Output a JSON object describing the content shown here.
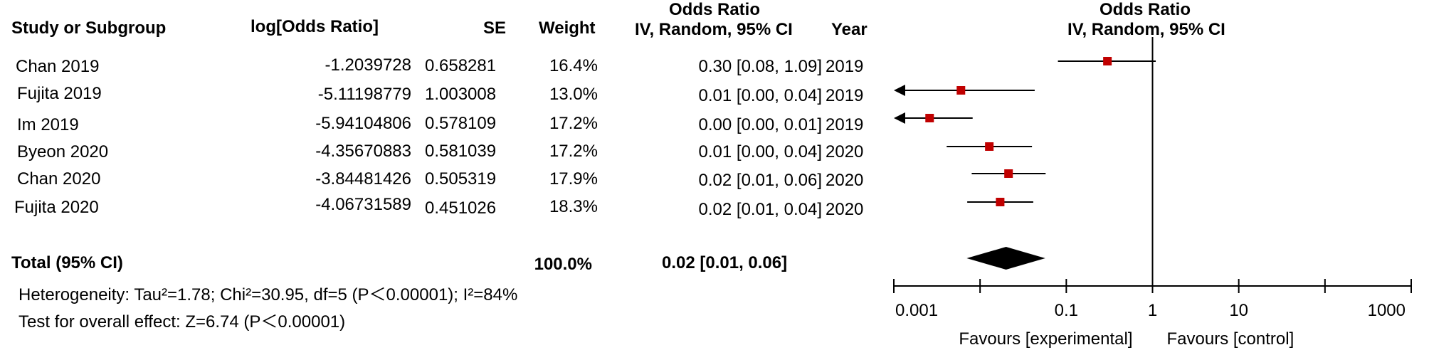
{
  "table": {
    "headers": {
      "study": "Study or Subgroup",
      "log_or": "log[Odds Ratio]",
      "se": "SE",
      "weight": "Weight",
      "or_top": "Odds Ratio",
      "or_bottom": "IV, Random, 95% CI",
      "year": "Year"
    },
    "rows": [
      {
        "study": "Chan 2019",
        "log_or": "-1.2039728",
        "se": "0.658281",
        "weight": "16.4%",
        "ci": "0.30 [0.08, 1.09]",
        "year": "2019"
      },
      {
        "study": "Fujita 2019",
        "log_or": "-5.11198779",
        "se": "1.003008",
        "weight": "13.0%",
        "ci": "0.01 [0.00, 0.04]",
        "year": "2019"
      },
      {
        "study": "Im 2019",
        "log_or": "-5.94104806",
        "se": "0.578109",
        "weight": "17.2%",
        "ci": "0.00 [0.00, 0.01]",
        "year": "2019"
      },
      {
        "study": "Byeon 2020",
        "log_or": "-4.35670883",
        "se": "0.581039",
        "weight": "17.2%",
        "ci": "0.01 [0.00, 0.04]",
        "year": "2020"
      },
      {
        "study": "Chan 2020",
        "log_or": "-3.84481426",
        "se": "0.505319",
        "weight": "17.9%",
        "ci": "0.02 [0.01, 0.06]",
        "year": "2020"
      },
      {
        "study": "Fujita 2020",
        "log_or": "-4.06731589",
        "se": "0.451026",
        "weight": "18.3%",
        "ci": "0.02 [0.01, 0.04]",
        "year": "2020"
      }
    ],
    "total": {
      "label": "Total (95% CI)",
      "weight": "100.0%",
      "ci": "0.02 [0.01, 0.06]"
    },
    "heterogeneity": "Heterogeneity: Tau²=1.78; Chi²=30.95, df=5 (P＜0.00001); I²=84%",
    "overall_effect": "Test for overall effect: Z=6.74 (P＜0.00001)"
  },
  "chart_data": {
    "type": "forest",
    "title": "Odds Ratio",
    "subtitle": "IV, Random, 95% CI",
    "x_scale": "log",
    "xlim": [
      0.001,
      1000
    ],
    "reference_line": 1,
    "ticks": [
      {
        "value": 0.001,
        "label": "0.001"
      },
      {
        "value": 0.1,
        "label": "0.1"
      },
      {
        "value": 1,
        "label": "1"
      },
      {
        "value": 10,
        "label": "10"
      },
      {
        "value": 1000,
        "label": "1000"
      }
    ],
    "xlabel_left": "Favours [experimental]",
    "xlabel_right": "Favours [control]",
    "marker_color": "#c00000",
    "studies": [
      {
        "name": "Chan 2019",
        "or": 0.3,
        "lower": 0.08,
        "upper": 1.09,
        "arrow_left": false
      },
      {
        "name": "Fujita 2019",
        "or": 0.006,
        "lower": 0.0008,
        "upper": 0.043,
        "arrow_left": true
      },
      {
        "name": "Im 2019",
        "or": 0.0026,
        "lower": 0.0008,
        "upper": 0.0082,
        "arrow_left": true
      },
      {
        "name": "Byeon 2020",
        "or": 0.0128,
        "lower": 0.0041,
        "upper": 0.04,
        "arrow_left": false
      },
      {
        "name": "Chan 2020",
        "or": 0.0214,
        "lower": 0.008,
        "upper": 0.0576,
        "arrow_left": false
      },
      {
        "name": "Fujita 2020",
        "or": 0.0171,
        "lower": 0.0071,
        "upper": 0.0414,
        "arrow_left": false
      }
    ],
    "pooled": {
      "or": 0.02,
      "lower": 0.007,
      "upper": 0.057
    }
  }
}
